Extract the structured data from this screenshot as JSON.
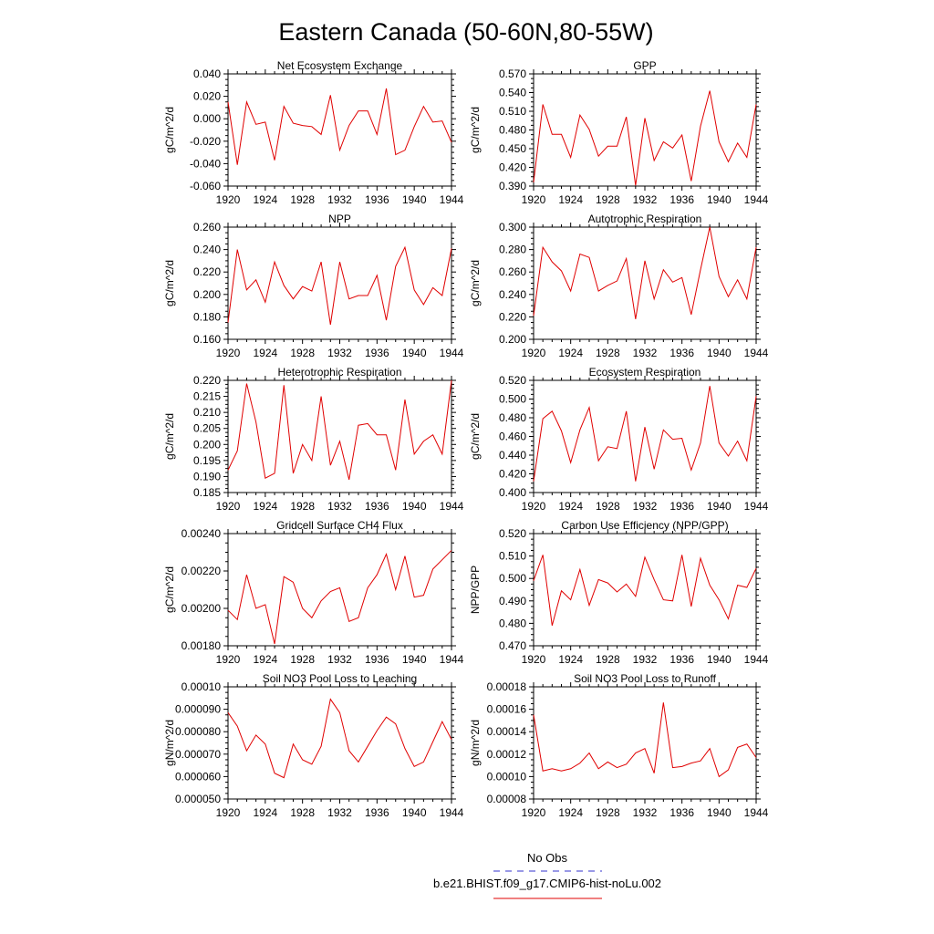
{
  "figure": {
    "title": "Eastern Canada (50-60N,80-55W)",
    "legend": {
      "obs_label": "No Obs",
      "obs_color": "#3333cc",
      "model_label": "b.e21.BHIST.f09_g17.CMIP6-hist-noLu.002",
      "model_color": "#e00000"
    }
  },
  "chart_data": [
    {
      "type": "line",
      "title": "Net Ecosystem Exchange",
      "xlabel": "",
      "ylabel": "gC/m^2/d",
      "xlim": [
        1920,
        1944
      ],
      "ylim": [
        -0.06,
        0.04
      ],
      "x_ticks": [
        1920,
        1924,
        1928,
        1932,
        1936,
        1940,
        1944
      ],
      "y_ticks": [
        "0.040",
        "0.020",
        "0.000",
        "-0.020",
        "-0.040",
        "-0.060"
      ],
      "y_tick_values": [
        0.04,
        0.02,
        0.0,
        -0.02,
        -0.04,
        -0.06
      ],
      "x": [
        1920,
        1921,
        1922,
        1923,
        1924,
        1925,
        1926,
        1927,
        1928,
        1929,
        1930,
        1931,
        1932,
        1933,
        1934,
        1935,
        1936,
        1937,
        1938,
        1939,
        1940,
        1941,
        1942,
        1943,
        1944
      ],
      "series": [
        {
          "name": "b.e21.BHIST.f09_g17.CMIP6-hist-noLu.002",
          "color": "#e00000",
          "values": [
            0.015,
            -0.041,
            0.015,
            -0.005,
            -0.003,
            -0.037,
            0.011,
            -0.004,
            -0.006,
            -0.007,
            -0.014,
            0.021,
            -0.028,
            -0.006,
            0.007,
            0.007,
            -0.014,
            0.027,
            -0.032,
            -0.028,
            -0.007,
            0.011,
            -0.003,
            -0.002,
            -0.021
          ]
        }
      ]
    },
    {
      "type": "line",
      "title": "GPP",
      "xlabel": "",
      "ylabel": "gC/m^2/d",
      "xlim": [
        1920,
        1944
      ],
      "ylim": [
        0.39,
        0.57
      ],
      "x_ticks": [
        1920,
        1924,
        1928,
        1932,
        1936,
        1940,
        1944
      ],
      "y_ticks": [
        "0.570",
        "0.540",
        "0.510",
        "0.480",
        "0.450",
        "0.420",
        "0.390"
      ],
      "y_tick_values": [
        0.57,
        0.54,
        0.51,
        0.48,
        0.45,
        0.42,
        0.39
      ],
      "x": [
        1920,
        1921,
        1922,
        1923,
        1924,
        1925,
        1926,
        1927,
        1928,
        1929,
        1930,
        1931,
        1932,
        1933,
        1934,
        1935,
        1936,
        1937,
        1938,
        1939,
        1940,
        1941,
        1942,
        1943,
        1944
      ],
      "series": [
        {
          "name": "b.e21.BHIST.f09_g17.CMIP6-hist-noLu.002",
          "color": "#e00000",
          "values": [
            0.396,
            0.521,
            0.473,
            0.473,
            0.436,
            0.504,
            0.481,
            0.438,
            0.454,
            0.454,
            0.501,
            0.391,
            0.499,
            0.431,
            0.461,
            0.451,
            0.472,
            0.398,
            0.486,
            0.543,
            0.461,
            0.429,
            0.459,
            0.436,
            0.521
          ]
        }
      ]
    },
    {
      "type": "line",
      "title": "NPP",
      "xlabel": "",
      "ylabel": "gC/m^2/d",
      "xlim": [
        1920,
        1944
      ],
      "ylim": [
        0.16,
        0.26
      ],
      "x_ticks": [
        1920,
        1924,
        1928,
        1932,
        1936,
        1940,
        1944
      ],
      "y_ticks": [
        "0.260",
        "0.240",
        "0.220",
        "0.200",
        "0.180",
        "0.160"
      ],
      "y_tick_values": [
        0.26,
        0.24,
        0.22,
        0.2,
        0.18,
        0.16
      ],
      "x": [
        1920,
        1921,
        1922,
        1923,
        1924,
        1925,
        1926,
        1927,
        1928,
        1929,
        1930,
        1931,
        1932,
        1933,
        1934,
        1935,
        1936,
        1937,
        1938,
        1939,
        1940,
        1941,
        1942,
        1943,
        1944
      ],
      "series": [
        {
          "name": "b.e21.BHIST.f09_g17.CMIP6-hist-noLu.002",
          "color": "#e00000",
          "values": [
            0.175,
            0.24,
            0.204,
            0.213,
            0.193,
            0.229,
            0.208,
            0.196,
            0.207,
            0.203,
            0.229,
            0.173,
            0.229,
            0.196,
            0.199,
            0.199,
            0.217,
            0.177,
            0.225,
            0.242,
            0.204,
            0.191,
            0.206,
            0.199,
            0.241
          ]
        }
      ]
    },
    {
      "type": "line",
      "title": "Autotrophic Respiration",
      "xlabel": "",
      "ylabel": "gC/m^2/d",
      "xlim": [
        1920,
        1944
      ],
      "ylim": [
        0.2,
        0.3
      ],
      "x_ticks": [
        1920,
        1924,
        1928,
        1932,
        1936,
        1940,
        1944
      ],
      "y_ticks": [
        "0.300",
        "0.280",
        "0.260",
        "0.240",
        "0.220",
        "0.200"
      ],
      "y_tick_values": [
        0.3,
        0.28,
        0.26,
        0.24,
        0.22,
        0.2
      ],
      "x": [
        1920,
        1921,
        1922,
        1923,
        1924,
        1925,
        1926,
        1927,
        1928,
        1929,
        1930,
        1931,
        1932,
        1933,
        1934,
        1935,
        1936,
        1937,
        1938,
        1939,
        1940,
        1941,
        1942,
        1943,
        1944
      ],
      "series": [
        {
          "name": "b.e21.BHIST.f09_g17.CMIP6-hist-noLu.002",
          "color": "#e00000",
          "values": [
            0.221,
            0.282,
            0.269,
            0.261,
            0.243,
            0.276,
            0.273,
            0.243,
            0.248,
            0.252,
            0.272,
            0.218,
            0.27,
            0.236,
            0.262,
            0.251,
            0.255,
            0.222,
            0.262,
            0.3,
            0.256,
            0.238,
            0.253,
            0.236,
            0.282
          ]
        }
      ]
    },
    {
      "type": "line",
      "title": "Heterotrophic Respiration",
      "xlabel": "",
      "ylabel": "gC/m^2/d",
      "xlim": [
        1920,
        1944
      ],
      "ylim": [
        0.185,
        0.22
      ],
      "x_ticks": [
        1920,
        1924,
        1928,
        1932,
        1936,
        1940,
        1944
      ],
      "y_ticks": [
        "0.220",
        "0.215",
        "0.210",
        "0.205",
        "0.200",
        "0.195",
        "0.190",
        "0.185"
      ],
      "y_tick_values": [
        0.22,
        0.215,
        0.21,
        0.205,
        0.2,
        0.195,
        0.19,
        0.185
      ],
      "x": [
        1920,
        1921,
        1922,
        1923,
        1924,
        1925,
        1926,
        1927,
        1928,
        1929,
        1930,
        1931,
        1932,
        1933,
        1934,
        1935,
        1936,
        1937,
        1938,
        1939,
        1940,
        1941,
        1942,
        1943,
        1944
      ],
      "series": [
        {
          "name": "b.e21.BHIST.f09_g17.CMIP6-hist-noLu.002",
          "color": "#e00000",
          "values": [
            0.192,
            0.198,
            0.219,
            0.207,
            0.1895,
            0.191,
            0.2185,
            0.191,
            0.2,
            0.195,
            0.215,
            0.1935,
            0.201,
            0.189,
            0.206,
            0.2065,
            0.203,
            0.203,
            0.192,
            0.214,
            0.197,
            0.201,
            0.203,
            0.197,
            0.22
          ]
        }
      ]
    },
    {
      "type": "line",
      "title": "Ecosystem Respiration",
      "xlabel": "",
      "ylabel": "gC/m^2/d",
      "xlim": [
        1920,
        1944
      ],
      "ylim": [
        0.4,
        0.52
      ],
      "x_ticks": [
        1920,
        1924,
        1928,
        1932,
        1936,
        1940,
        1944
      ],
      "y_ticks": [
        "0.520",
        "0.500",
        "0.480",
        "0.460",
        "0.440",
        "0.420",
        "0.400"
      ],
      "y_tick_values": [
        0.52,
        0.5,
        0.48,
        0.46,
        0.44,
        0.42,
        0.4
      ],
      "x": [
        1920,
        1921,
        1922,
        1923,
        1924,
        1925,
        1926,
        1927,
        1928,
        1929,
        1930,
        1931,
        1932,
        1933,
        1934,
        1935,
        1936,
        1937,
        1938,
        1939,
        1940,
        1941,
        1942,
        1943,
        1944
      ],
      "series": [
        {
          "name": "b.e21.BHIST.f09_g17.CMIP6-hist-noLu.002",
          "color": "#e00000",
          "values": [
            0.412,
            0.479,
            0.487,
            0.466,
            0.432,
            0.467,
            0.491,
            0.434,
            0.449,
            0.447,
            0.487,
            0.412,
            0.47,
            0.425,
            0.467,
            0.457,
            0.458,
            0.424,
            0.453,
            0.514,
            0.453,
            0.439,
            0.455,
            0.434,
            0.503
          ]
        }
      ]
    },
    {
      "type": "line",
      "title": "Gridcell Surface CH4 Flux",
      "xlabel": "",
      "ylabel": "gC/m^2/d",
      "xlim": [
        1920,
        1944
      ],
      "ylim": [
        0.0018,
        0.0024
      ],
      "x_ticks": [
        1920,
        1924,
        1928,
        1932,
        1936,
        1940,
        1944
      ],
      "y_ticks": [
        "0.00240",
        "0.00220",
        "0.00200",
        "0.00180"
      ],
      "y_tick_values": [
        0.0024,
        0.0022,
        0.002,
        0.0018
      ],
      "x": [
        1920,
        1921,
        1922,
        1923,
        1924,
        1925,
        1926,
        1927,
        1928,
        1929,
        1930,
        1931,
        1932,
        1933,
        1934,
        1935,
        1936,
        1937,
        1938,
        1939,
        1940,
        1941,
        1942,
        1943,
        1944
      ],
      "series": [
        {
          "name": "b.e21.BHIST.f09_g17.CMIP6-hist-noLu.002",
          "color": "#e00000",
          "values": [
            0.00199,
            0.00194,
            0.00218,
            0.002,
            0.00202,
            0.00181,
            0.00217,
            0.00214,
            0.002,
            0.00195,
            0.00204,
            0.00209,
            0.00211,
            0.00193,
            0.00195,
            0.00211,
            0.00218,
            0.00229,
            0.0021,
            0.00228,
            0.00206,
            0.00207,
            0.00221,
            0.00226,
            0.00231
          ]
        }
      ]
    },
    {
      "type": "line",
      "title": "Carbon Use Efficiency (NPP/GPP)",
      "xlabel": "",
      "ylabel": "NPP/GPP",
      "xlim": [
        1920,
        1944
      ],
      "ylim": [
        0.47,
        0.52
      ],
      "x_ticks": [
        1920,
        1924,
        1928,
        1932,
        1936,
        1940,
        1944
      ],
      "y_ticks": [
        "0.520",
        "0.510",
        "0.500",
        "0.490",
        "0.480",
        "0.470"
      ],
      "y_tick_values": [
        0.52,
        0.51,
        0.5,
        0.49,
        0.48,
        0.47
      ],
      "x": [
        1920,
        1921,
        1922,
        1923,
        1924,
        1925,
        1926,
        1927,
        1928,
        1929,
        1930,
        1931,
        1932,
        1933,
        1934,
        1935,
        1936,
        1937,
        1938,
        1939,
        1940,
        1941,
        1942,
        1943,
        1944
      ],
      "series": [
        {
          "name": "b.e21.BHIST.f09_g17.CMIP6-hist-noLu.002",
          "color": "#e00000",
          "values": [
            0.499,
            0.5105,
            0.479,
            0.4945,
            0.4905,
            0.504,
            0.488,
            0.4995,
            0.498,
            0.494,
            0.4975,
            0.492,
            0.5095,
            0.4995,
            0.4905,
            0.49,
            0.5105,
            0.4875,
            0.509,
            0.497,
            0.4905,
            0.482,
            0.497,
            0.496,
            0.5045
          ]
        }
      ]
    },
    {
      "type": "line",
      "title": "Soil NO3 Pool Loss to Leaching",
      "xlabel": "",
      "ylabel": "gN/m^2/d",
      "xlim": [
        1920,
        1944
      ],
      "ylim": [
        5e-05,
        0.0001
      ],
      "x_ticks": [
        1920,
        1924,
        1928,
        1932,
        1936,
        1940,
        1944
      ],
      "y_ticks": [
        "0.00010",
        "0.000090",
        "0.000080",
        "0.000070",
        "0.000060",
        "0.000050"
      ],
      "y_tick_values": [
        0.0001,
        9e-05,
        8e-05,
        7e-05,
        6e-05,
        5e-05
      ],
      "x": [
        1920,
        1921,
        1922,
        1923,
        1924,
        1925,
        1926,
        1927,
        1928,
        1929,
        1930,
        1931,
        1932,
        1933,
        1934,
        1935,
        1936,
        1937,
        1938,
        1939,
        1940,
        1941,
        1942,
        1943,
        1944
      ],
      "series": [
        {
          "name": "b.e21.BHIST.f09_g17.CMIP6-hist-noLu.002",
          "color": "#e00000",
          "values": [
            8.85e-05,
            8.25e-05,
            7.15e-05,
            7.85e-05,
            7.45e-05,
            6.15e-05,
            5.95e-05,
            7.45e-05,
            6.75e-05,
            6.55e-05,
            7.35e-05,
            9.45e-05,
            8.85e-05,
            7.15e-05,
            6.65e-05,
            7.35e-05,
            8.05e-05,
            8.65e-05,
            8.35e-05,
            7.25e-05,
            6.45e-05,
            6.65e-05,
            7.55e-05,
            8.45e-05,
            7.65e-05
          ]
        }
      ]
    },
    {
      "type": "line",
      "title": "Soil NO3 Pool Loss to Runoff",
      "xlabel": "",
      "ylabel": "gN/m^2/d",
      "xlim": [
        1920,
        1944
      ],
      "ylim": [
        8e-05,
        0.00018
      ],
      "x_ticks": [
        1920,
        1924,
        1928,
        1932,
        1936,
        1940,
        1944
      ],
      "y_ticks": [
        "0.00018",
        "0.00016",
        "0.00014",
        "0.00012",
        "0.00010",
        "0.00008"
      ],
      "y_tick_values": [
        0.00018,
        0.00016,
        0.00014,
        0.00012,
        0.0001,
        8e-05
      ],
      "x": [
        1920,
        1921,
        1922,
        1923,
        1924,
        1925,
        1926,
        1927,
        1928,
        1929,
        1930,
        1931,
        1932,
        1933,
        1934,
        1935,
        1936,
        1937,
        1938,
        1939,
        1940,
        1941,
        1942,
        1943,
        1944
      ],
      "series": [
        {
          "name": "b.e21.BHIST.f09_g17.CMIP6-hist-noLu.002",
          "color": "#e00000",
          "values": [
            0.000155,
            0.000105,
            0.000107,
            0.000105,
            0.000107,
            0.000112,
            0.000121,
            0.000107,
            0.000113,
            0.000108,
            0.000111,
            0.000121,
            0.000125,
            0.000103,
            0.000166,
            0.000108,
            0.000109,
            0.000112,
            0.000114,
            0.000125,
            0.0001,
            0.000106,
            0.000126,
            0.000129,
            0.000117
          ]
        }
      ]
    }
  ]
}
